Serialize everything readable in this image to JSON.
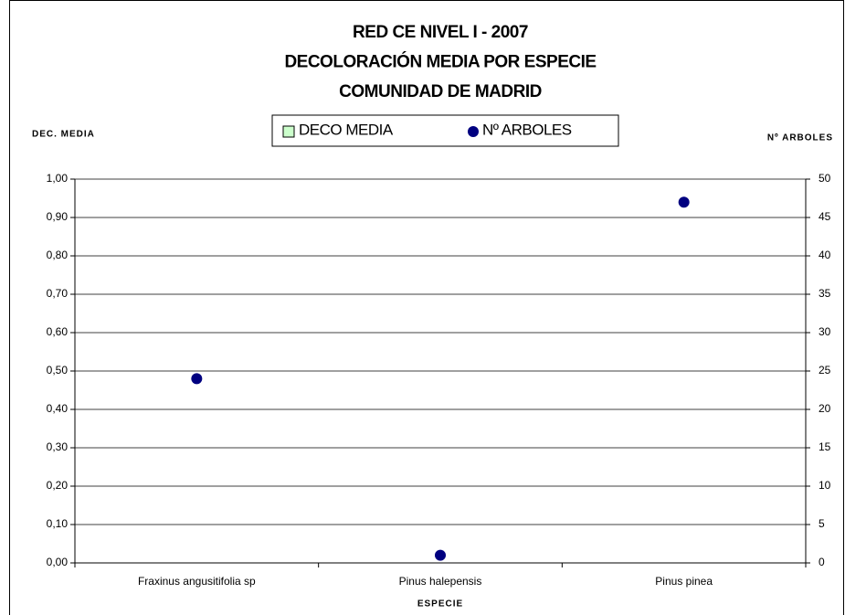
{
  "chart_data": {
    "type": "bar",
    "title": [
      "RED CE NIVEL I - 2007",
      "DECOLORACIÓN MEDIA POR ESPECIE",
      "COMUNIDAD DE MADRID"
    ],
    "y_label": "DEC. MEDIA",
    "y2_label": "Nº ARBOLES",
    "x_label": "ESPECIE",
    "categories": [
      "Fraxinus angusitifolia sp",
      "Pinus halepensis",
      "Pinus pinea"
    ],
    "series": [
      {
        "name": "DECO MEDIA",
        "type": "bar",
        "color": "#ccffcc",
        "values": [
          0,
          0,
          0
        ]
      },
      {
        "name": "Nº ARBOLES",
        "type": "scatter",
        "axis": "y2",
        "color": "#000080",
        "values": [
          24,
          1,
          47
        ]
      }
    ],
    "ylim": [
      0,
      1
    ],
    "yticks": [
      {
        "value": 0,
        "label": "0,00"
      },
      {
        "value": 0.1,
        "label": "0,10"
      },
      {
        "value": 0.2,
        "label": "0,20"
      },
      {
        "value": 0.3,
        "label": "0,30"
      },
      {
        "value": 0.4,
        "label": "0,40"
      },
      {
        "value": 0.5,
        "label": "0,50"
      },
      {
        "value": 0.6,
        "label": "0,60"
      },
      {
        "value": 0.7,
        "label": "0,70"
      },
      {
        "value": 0.8,
        "label": "0,80"
      },
      {
        "value": 0.9,
        "label": "0,90"
      },
      {
        "value": 1,
        "label": "1,00"
      }
    ],
    "y2lim": [
      0,
      50
    ],
    "y2ticks": [
      0,
      5,
      10,
      15,
      20,
      25,
      30,
      35,
      40,
      45,
      50
    ],
    "grid": true,
    "legend": "top"
  }
}
